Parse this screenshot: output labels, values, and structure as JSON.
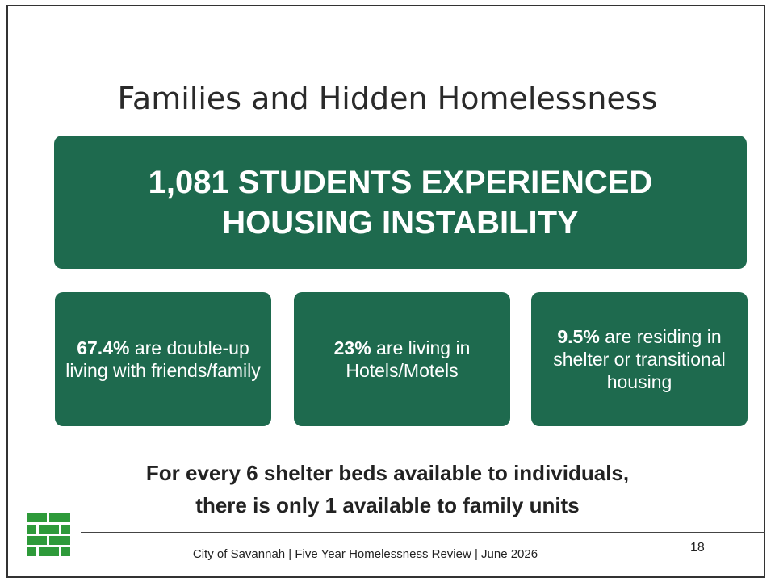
{
  "title": "Families and Hidden Homelessness",
  "banner": {
    "lines": [
      "1,081 STUDENTS EXPERIENCED",
      "HOUSING INSTABILITY"
    ]
  },
  "stats": [
    {
      "highlight": "67.4%",
      "text": "are double-up living with friends/family"
    },
    {
      "highlight": "23%",
      "text": "are living in Hotels/Motels"
    },
    {
      "highlight": "9.5%",
      "text": "are residing in shelter or transitional housing"
    }
  ],
  "note": {
    "lines": [
      "For every 6 shelter beds available to individuals,",
      "there is only 1 available to family units"
    ]
  },
  "footer": {
    "text": "City of Savannah | Five Year Homelessness Review | June 2026",
    "page": "18"
  }
}
